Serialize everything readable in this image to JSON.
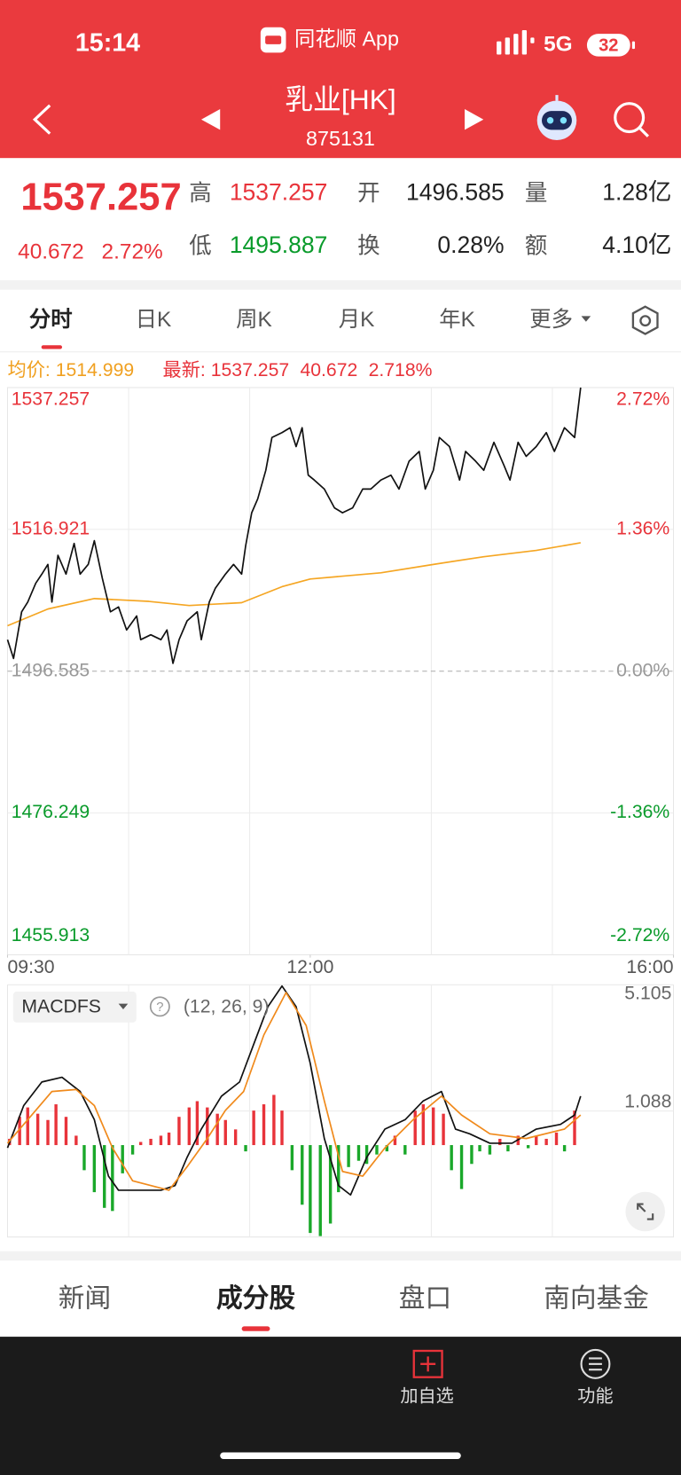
{
  "status_bar": {
    "time": "15:14",
    "app": "同花顺 App",
    "network": "5G",
    "battery": "32"
  },
  "header": {
    "title": "乳业[HK]",
    "code": "875131"
  },
  "quote": {
    "price": "1537.257",
    "change": "40.672",
    "change_pct": "2.72%",
    "stats": [
      [
        {
          "label": "高",
          "value": "1537.257"
        },
        {
          "label": "开",
          "value": "1496.585"
        },
        {
          "label": "量",
          "value": "1.28亿"
        }
      ],
      [
        {
          "label": "低",
          "value": "1495.887"
        },
        {
          "label": "换",
          "value": "0.28%"
        },
        {
          "label": "额",
          "value": "4.10亿"
        }
      ]
    ]
  },
  "tabs": [
    "分时",
    "日K",
    "周K",
    "月K",
    "年K",
    "更多"
  ],
  "info": {
    "avg_label": "均价:",
    "avg": "1514.999",
    "last_label": "最新:",
    "last": "1537.257",
    "change": "40.672",
    "change_pct": "2.718%"
  },
  "chart_data": [
    {
      "type": "line",
      "xlim": [
        0,
        330
      ],
      "xticks": [
        {
          "value": 0,
          "label": "09:30"
        },
        {
          "value": 150,
          "label": "12:00"
        },
        {
          "value": 330,
          "label": "16:00"
        }
      ],
      "xgrid": [
        60,
        120,
        210,
        270
      ],
      "ylim": [
        1455.913,
        1537.257
      ],
      "yticks": [
        1537.257,
        1516.921,
        1496.585,
        1476.249,
        1455.913
      ],
      "y2lim": [
        -2.72,
        2.72
      ],
      "y2ticks": [
        {
          "value": 2.72,
          "label": "2.72%"
        },
        {
          "value": 1.36,
          "label": "1.36%"
        },
        {
          "value": 0,
          "label": "0.00%"
        },
        {
          "value": -1.36,
          "label": "-1.36%"
        },
        {
          "value": -2.72,
          "label": "-2.72%"
        }
      ],
      "up_color": "#e8333a",
      "flat_color": "#999999",
      "down_color": "#0a9b2b",
      "series": [
        {
          "color": "#111111",
          "x": [
            0,
            3,
            7,
            10,
            14,
            17,
            20,
            22,
            25,
            29,
            33,
            36,
            40,
            43,
            47,
            51,
            55,
            59,
            64,
            66,
            71,
            76,
            79,
            82,
            85,
            89,
            94,
            96,
            100,
            103,
            108,
            112,
            116,
            118,
            121,
            124,
            128,
            131,
            136,
            140,
            143,
            146,
            149,
            152,
            157,
            162,
            166,
            171,
            176,
            180,
            185,
            190,
            194,
            199,
            204,
            207,
            211,
            214,
            219,
            224,
            227,
            232,
            236,
            241,
            246,
            249,
            253,
            257,
            262,
            267,
            271,
            276,
            281,
            284
          ],
          "values": [
            1501.1,
            1498.4,
            1505.1,
            1506.5,
            1509.2,
            1510.5,
            1511.9,
            1506.5,
            1513.2,
            1510.5,
            1514.9,
            1510.5,
            1511.9,
            1515.3,
            1509.9,
            1505.1,
            1505.8,
            1502.5,
            1504.5,
            1501.1,
            1501.8,
            1501.1,
            1502.5,
            1497.7,
            1501.1,
            1503.8,
            1505.1,
            1501.1,
            1506.5,
            1508.5,
            1510.5,
            1511.9,
            1510.5,
            1514.6,
            1519.3,
            1521.3,
            1525.4,
            1530.1,
            1530.8,
            1531.5,
            1528.8,
            1531.5,
            1524.7,
            1524.0,
            1522.7,
            1520.0,
            1519.3,
            1520.0,
            1522.7,
            1522.7,
            1524.0,
            1524.7,
            1522.7,
            1526.7,
            1528.1,
            1522.7,
            1525.4,
            1530.1,
            1528.8,
            1524.0,
            1528.1,
            1526.7,
            1525.4,
            1529.4,
            1526.1,
            1524.0,
            1529.4,
            1527.4,
            1528.8,
            1530.8,
            1528.1,
            1531.5,
            1530.1,
            1537.257
          ]
        },
        {
          "color": "#f5a623",
          "x": [
            0,
            20,
            43,
            70,
            90,
            116,
            136,
            150,
            185,
            211,
            236,
            262,
            284
          ],
          "values": [
            1503.1,
            1505.5,
            1507.0,
            1506.6,
            1506.0,
            1506.4,
            1508.7,
            1509.8,
            1510.7,
            1511.9,
            1513.0,
            1513.9,
            1514.999
          ]
        }
      ]
    },
    {
      "type": "macd",
      "title": "MACDFS",
      "params": "(12, 26, 9)",
      "xlim": [
        0,
        330
      ],
      "xgrid": [
        60,
        120,
        150,
        210,
        270
      ],
      "ylim": [
        -2.929,
        5.105
      ],
      "yticks": [
        5.105,
        1.088
      ],
      "up_color": "#e8333a",
      "down_color": "#1aa82a",
      "histogram": {
        "x": [
          1,
          6,
          10,
          15,
          20,
          24,
          29,
          34,
          38,
          43,
          48,
          52,
          57,
          62,
          66,
          71,
          76,
          80,
          85,
          90,
          94,
          99,
          104,
          108,
          113,
          118,
          122,
          127,
          132,
          136,
          141,
          146,
          150,
          155,
          160,
          164,
          169,
          174,
          178,
          183,
          188,
          192,
          197,
          202,
          206,
          211,
          216,
          220,
          225,
          230,
          234,
          239,
          244,
          248,
          253,
          258,
          262,
          267,
          272,
          276,
          281
        ],
        "values": [
          0.2,
          0.9,
          1.2,
          1.0,
          0.8,
          1.3,
          0.9,
          0.3,
          -0.8,
          -1.5,
          -2.0,
          -2.1,
          -0.9,
          -0.3,
          0.1,
          0.2,
          0.3,
          0.4,
          0.9,
          1.2,
          1.4,
          1.2,
          1.0,
          0.8,
          0.5,
          -0.2,
          1.1,
          1.3,
          1.6,
          1.1,
          -0.8,
          -1.9,
          -2.8,
          -2.9,
          -2.5,
          -1.5,
          -0.7,
          -0.5,
          -0.6,
          -0.3,
          -0.2,
          0.3,
          -0.3,
          1.1,
          1.3,
          1.2,
          1.0,
          -0.8,
          -1.4,
          -0.6,
          -0.2,
          -0.3,
          0.2,
          -0.2,
          0.3,
          -0.1,
          0.3,
          0.2,
          0.4,
          -0.2,
          1.1
        ]
      },
      "series": [
        {
          "color": "#111111",
          "x": [
            0,
            8,
            17,
            27,
            36,
            43,
            50,
            55,
            64,
            76,
            83,
            89,
            96,
            106,
            115,
            122,
            129,
            136,
            143,
            150,
            157,
            164,
            170,
            178,
            187,
            197,
            206,
            215,
            222,
            229,
            239,
            250,
            262,
            274,
            281,
            284
          ],
          "values": [
            -0.09,
            1.26,
            2.01,
            2.16,
            1.71,
            0.81,
            -0.99,
            -1.44,
            -1.44,
            -1.44,
            -1.29,
            -0.39,
            0.51,
            1.56,
            2.01,
            3.21,
            4.41,
            5.07,
            4.41,
            2.61,
            0.21,
            -1.29,
            -1.59,
            -0.39,
            0.51,
            0.81,
            1.41,
            1.71,
            0.51,
            0.36,
            0.06,
            0.06,
            0.51,
            0.66,
            0.96,
            1.56
          ]
        },
        {
          "color": "#f08a1c",
          "x": [
            0,
            10,
            22,
            34,
            43,
            52,
            62,
            80,
            89,
            99,
            108,
            117,
            127,
            138,
            148,
            157,
            166,
            176,
            187,
            201,
            215,
            225,
            239,
            257,
            276,
            284
          ],
          "values": [
            0.06,
            0.81,
            1.71,
            1.77,
            1.26,
            -0.09,
            -1.14,
            -1.44,
            -0.69,
            0.21,
            1.11,
            1.71,
            3.51,
            4.86,
            3.81,
            1.41,
            -0.84,
            -0.99,
            -0.09,
            0.81,
            1.56,
            0.96,
            0.36,
            0.21,
            0.51,
            0.96
          ]
        }
      ]
    }
  ],
  "bottom_tabs": [
    "新闻",
    "成分股",
    "盘口",
    "南向基金"
  ],
  "toolbar": [
    "加自选",
    "功能"
  ]
}
